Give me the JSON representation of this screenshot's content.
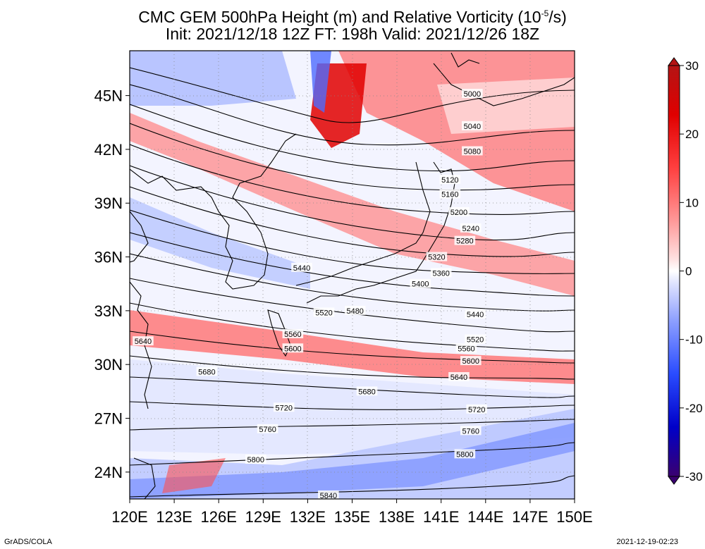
{
  "title": {
    "line1_pre": "CMC GEM 500hPa Height (m) and Relative Vorticity (10",
    "line1_sup": "-5",
    "line1_post": "/s)",
    "line2": "Init: 2021/12/18 12Z  FT: 198h  Valid: 2021/12/26 18Z"
  },
  "map": {
    "lon_range": [
      120,
      150
    ],
    "lat_range": [
      22.5,
      47.5
    ],
    "lon_ticks": [
      {
        "v": 120,
        "t": "120E"
      },
      {
        "v": 123,
        "t": "123E"
      },
      {
        "v": 126,
        "t": "126E"
      },
      {
        "v": 129,
        "t": "129E"
      },
      {
        "v": 132,
        "t": "132E"
      },
      {
        "v": 135,
        "t": "135E"
      },
      {
        "v": 138,
        "t": "138E"
      },
      {
        "v": 141,
        "t": "141E"
      },
      {
        "v": 144,
        "t": "144E"
      },
      {
        "v": 147,
        "t": "147E"
      },
      {
        "v": 150,
        "t": "150E"
      }
    ],
    "lat_ticks": [
      {
        "v": 45,
        "t": "45N"
      },
      {
        "v": 42,
        "t": "42N"
      },
      {
        "v": 39,
        "t": "39N"
      },
      {
        "v": 36,
        "t": "36N"
      },
      {
        "v": 33,
        "t": "33N"
      },
      {
        "v": 30,
        "t": "30N"
      },
      {
        "v": 27,
        "t": "27N"
      },
      {
        "v": 24,
        "t": "24N"
      }
    ],
    "grid_lines": true
  },
  "chart_data": {
    "type": "heatmap",
    "description_fields": "contours of 500hPa geopotential height with labels in meters",
    "contour_labels": [
      {
        "t": "5000",
        "lon": 143.1,
        "lat": 45.1
      },
      {
        "t": "5040",
        "lon": 143.1,
        "lat": 43.3
      },
      {
        "t": "5080",
        "lon": 143.1,
        "lat": 41.9
      },
      {
        "t": "5120",
        "lon": 141.6,
        "lat": 40.3
      },
      {
        "t": "5160",
        "lon": 141.6,
        "lat": 39.5
      },
      {
        "t": "5200",
        "lon": 142.2,
        "lat": 38.5
      },
      {
        "t": "5240",
        "lon": 143.0,
        "lat": 37.6
      },
      {
        "t": "5280",
        "lon": 142.6,
        "lat": 36.9
      },
      {
        "t": "5320",
        "lon": 140.7,
        "lat": 36.0
      },
      {
        "t": "5360",
        "lon": 141.0,
        "lat": 35.1
      },
      {
        "t": "5400",
        "lon": 139.6,
        "lat": 34.5
      },
      {
        "t": "5440",
        "lon": 131.6,
        "lat": 35.4
      },
      {
        "t": "5440",
        "lon": 143.3,
        "lat": 32.8
      },
      {
        "t": "5480",
        "lon": 135.2,
        "lat": 33.0
      },
      {
        "t": "5520",
        "lon": 133.1,
        "lat": 32.9
      },
      {
        "t": "5520",
        "lon": 143.3,
        "lat": 31.4
      },
      {
        "t": "5560",
        "lon": 131.0,
        "lat": 31.7
      },
      {
        "t": "5560",
        "lon": 142.7,
        "lat": 30.9
      },
      {
        "t": "5600",
        "lon": 131.0,
        "lat": 30.9
      },
      {
        "t": "5600",
        "lon": 143.0,
        "lat": 30.2
      },
      {
        "t": "5640",
        "lon": 120.9,
        "lat": 31.3
      },
      {
        "t": "5640",
        "lon": 142.2,
        "lat": 29.3
      },
      {
        "t": "5680",
        "lon": 125.2,
        "lat": 29.6
      },
      {
        "t": "5680",
        "lon": 136.0,
        "lat": 28.5
      },
      {
        "t": "5720",
        "lon": 130.4,
        "lat": 27.6
      },
      {
        "t": "5720",
        "lon": 143.4,
        "lat": 27.5
      },
      {
        "t": "5760",
        "lon": 129.3,
        "lat": 26.4
      },
      {
        "t": "5760",
        "lon": 143.0,
        "lat": 26.3
      },
      {
        "t": "5800",
        "lon": 128.5,
        "lat": 24.7
      },
      {
        "t": "5800",
        "lon": 142.6,
        "lat": 25.0
      },
      {
        "t": "5840",
        "lon": 133.4,
        "lat": 22.7
      }
    ],
    "colorbar": {
      "ticks": [
        "30",
        "20",
        "10",
        "0",
        "-10",
        "-20",
        "-30"
      ],
      "range": [
        -30,
        30
      ],
      "colors": [
        "#3a0070",
        "#0000c8",
        "#2a4cff",
        "#6f86ff",
        "#a9b6ff",
        "#d8ddff",
        "#ffffff",
        "#ffd4d4",
        "#ffaaaa",
        "#ff7070",
        "#ff3030",
        "#e60000",
        "#b41414"
      ]
    }
  },
  "footer": {
    "left": "GrADS/COLA",
    "right": "2021-12-19-02:23"
  }
}
